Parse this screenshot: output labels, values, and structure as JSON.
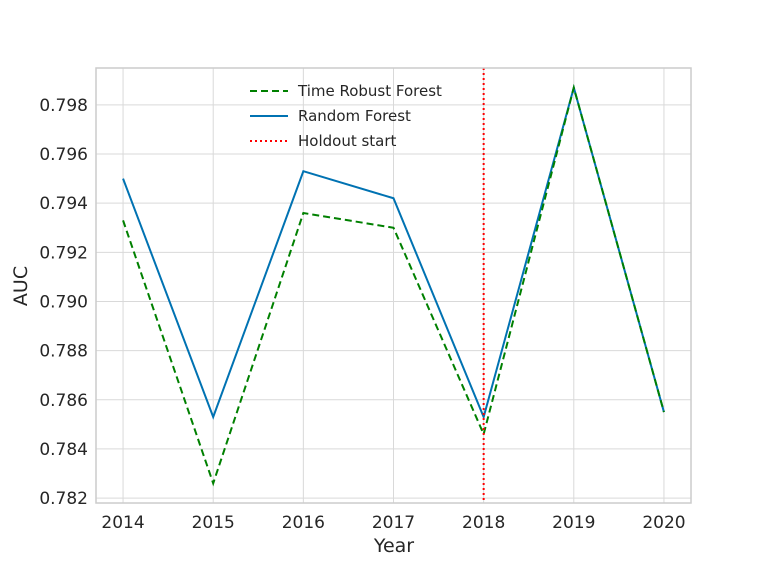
{
  "chart_data": {
    "type": "line",
    "title": "",
    "xlabel": "Year",
    "ylabel": "AUC",
    "x": [
      2014,
      2015,
      2016,
      2017,
      2018,
      2019,
      2020
    ],
    "x_tick_labels": [
      "2014",
      "2015",
      "2016",
      "2017",
      "2018",
      "2019",
      "2020"
    ],
    "y_tick_values": [
      0.782,
      0.784,
      0.786,
      0.788,
      0.79,
      0.792,
      0.794,
      0.796,
      0.798
    ],
    "y_tick_labels": [
      "0.782",
      "0.784",
      "0.786",
      "0.788",
      "0.790",
      "0.792",
      "0.794",
      "0.796",
      "0.798"
    ],
    "xlim": [
      2013.7,
      2020.3
    ],
    "ylim": [
      0.7818,
      0.7995
    ],
    "grid": true,
    "legend_position": "top-center",
    "series": [
      {
        "name": "Time Robust Forest",
        "color": "#008000",
        "line_style": "dashed",
        "values": [
          0.7933,
          0.7826,
          0.7936,
          0.793,
          0.7846,
          0.7987,
          0.7855
        ]
      },
      {
        "name": "Random Forest",
        "color": "#0072B2",
        "line_style": "solid",
        "values": [
          0.795,
          0.7853,
          0.7953,
          0.7942,
          0.7853,
          0.7987,
          0.7855
        ]
      }
    ],
    "vlines": [
      {
        "name": "Holdout start",
        "x": 2018,
        "color": "#ff0000",
        "line_style": "dotted"
      }
    ],
    "colors": {
      "grid": "#d9d9d9",
      "spine": "#cccccc",
      "text": "#262626"
    }
  }
}
